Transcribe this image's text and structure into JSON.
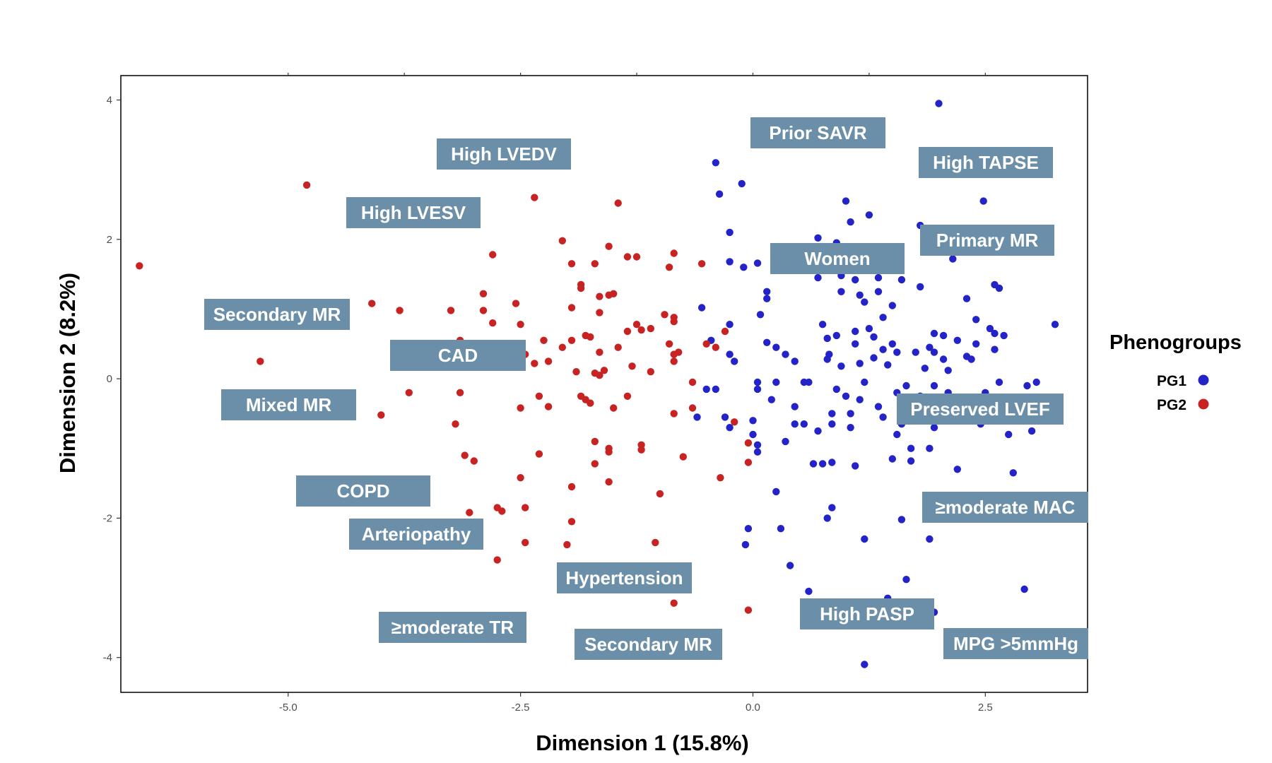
{
  "chart_data": {
    "type": "scatter",
    "xlabel": "Dimension 1 (15.8%)",
    "ylabel": "Dimension 2 (8.2%)",
    "xlim": [
      -6.8,
      3.6
    ],
    "ylim": [
      -4.5,
      4.35
    ],
    "xticks": [
      -5.0,
      -2.5,
      0.0,
      2.5
    ],
    "xtick_labels": [
      "-5.0",
      "-2.5",
      "0.0",
      "2.5"
    ],
    "yticks": [
      -4,
      -2,
      0,
      2,
      4
    ],
    "ytick_labels": [
      "-4",
      "-2",
      "0",
      "2",
      "4"
    ],
    "grid": false,
    "legend": {
      "title": "Phenogroups",
      "position": "right",
      "entries": [
        "PG1",
        "PG2"
      ]
    },
    "series": [
      {
        "name": "PG1",
        "color": "#2323c8",
        "points": [
          [
            2.0,
            3.95
          ],
          [
            -0.4,
            3.1
          ],
          [
            -0.12,
            2.8
          ],
          [
            -0.36,
            2.65
          ],
          [
            1.0,
            2.55
          ],
          [
            2.48,
            2.55
          ],
          [
            1.25,
            2.35
          ],
          [
            1.05,
            2.25
          ],
          [
            1.8,
            2.2
          ],
          [
            -0.25,
            2.1
          ],
          [
            0.7,
            2.02
          ],
          [
            0.9,
            1.95
          ],
          [
            2.15,
            1.72
          ],
          [
            -0.25,
            1.68
          ],
          [
            -0.1,
            1.6
          ],
          [
            0.05,
            1.66
          ],
          [
            0.7,
            1.45
          ],
          [
            0.95,
            1.48
          ],
          [
            1.1,
            1.42
          ],
          [
            1.35,
            1.45
          ],
          [
            1.6,
            1.42
          ],
          [
            1.8,
            1.32
          ],
          [
            2.6,
            1.35
          ],
          [
            2.65,
            1.3
          ],
          [
            0.15,
            1.25
          ],
          [
            0.15,
            1.15
          ],
          [
            0.95,
            1.25
          ],
          [
            1.15,
            1.2
          ],
          [
            1.35,
            1.25
          ],
          [
            2.3,
            1.15
          ],
          [
            1.2,
            1.1
          ],
          [
            1.5,
            1.05
          ],
          [
            -0.55,
            1.02
          ],
          [
            0.08,
            0.92
          ],
          [
            0.75,
            0.78
          ],
          [
            1.4,
            0.88
          ],
          [
            2.4,
            0.85
          ],
          [
            -0.25,
            0.78
          ],
          [
            0.9,
            0.62
          ],
          [
            1.1,
            0.68
          ],
          [
            1.25,
            0.72
          ],
          [
            1.3,
            0.6
          ],
          [
            1.95,
            0.65
          ],
          [
            2.05,
            0.62
          ],
          [
            2.55,
            0.72
          ],
          [
            2.6,
            0.65
          ],
          [
            2.7,
            0.62
          ],
          [
            3.25,
            0.78
          ],
          [
            -0.45,
            0.55
          ],
          [
            0.15,
            0.52
          ],
          [
            0.8,
            0.58
          ],
          [
            1.1,
            0.5
          ],
          [
            1.5,
            0.5
          ],
          [
            1.9,
            0.45
          ],
          [
            2.2,
            0.55
          ],
          [
            2.4,
            0.5
          ],
          [
            -0.25,
            0.35
          ],
          [
            0.25,
            0.45
          ],
          [
            0.35,
            0.35
          ],
          [
            0.82,
            0.35
          ],
          [
            1.4,
            0.42
          ],
          [
            1.55,
            0.38
          ],
          [
            1.75,
            0.38
          ],
          [
            1.95,
            0.38
          ],
          [
            2.05,
            0.28
          ],
          [
            2.3,
            0.32
          ],
          [
            2.35,
            0.28
          ],
          [
            2.6,
            0.42
          ],
          [
            -0.2,
            0.25
          ],
          [
            0.45,
            0.25
          ],
          [
            0.8,
            0.28
          ],
          [
            0.95,
            0.18
          ],
          [
            1.3,
            0.3
          ],
          [
            1.45,
            0.2
          ],
          [
            1.15,
            0.22
          ],
          [
            1.85,
            0.15
          ],
          [
            2.1,
            0.12
          ],
          [
            -0.4,
            -0.15
          ],
          [
            -0.5,
            -0.15
          ],
          [
            0.05,
            -0.05
          ],
          [
            0.25,
            -0.05
          ],
          [
            0.55,
            -0.05
          ],
          [
            0.6,
            -0.05
          ],
          [
            1.2,
            -0.05
          ],
          [
            1.65,
            -0.1
          ],
          [
            1.95,
            -0.1
          ],
          [
            2.65,
            -0.05
          ],
          [
            2.95,
            -0.1
          ],
          [
            3.05,
            -0.05
          ],
          [
            0.05,
            -0.15
          ],
          [
            0.2,
            -0.3
          ],
          [
            0.9,
            -0.15
          ],
          [
            1.0,
            -0.25
          ],
          [
            1.15,
            -0.3
          ],
          [
            1.55,
            -0.2
          ],
          [
            1.8,
            -0.25
          ],
          [
            2.1,
            -0.2
          ],
          [
            2.5,
            -0.2
          ],
          [
            0.45,
            -0.4
          ],
          [
            0.85,
            -0.5
          ],
          [
            1.05,
            -0.5
          ],
          [
            1.35,
            -0.4
          ],
          [
            2.55,
            -0.45
          ],
          [
            -0.6,
            -0.55
          ],
          [
            -0.3,
            -0.55
          ],
          [
            0.0,
            -0.6
          ],
          [
            0.45,
            -0.65
          ],
          [
            0.55,
            -0.65
          ],
          [
            0.85,
            -0.65
          ],
          [
            1.05,
            -0.7
          ],
          [
            1.4,
            -0.55
          ],
          [
            1.6,
            -0.65
          ],
          [
            1.95,
            -0.7
          ],
          [
            2.45,
            -0.65
          ],
          [
            -0.25,
            -0.7
          ],
          [
            0.0,
            -0.8
          ],
          [
            0.05,
            -0.95
          ],
          [
            0.7,
            -0.75
          ],
          [
            1.55,
            -0.8
          ],
          [
            2.75,
            -0.8
          ],
          [
            3.0,
            -0.75
          ],
          [
            0.35,
            -0.9
          ],
          [
            1.7,
            -1.0
          ],
          [
            1.9,
            -1.0
          ],
          [
            0.05,
            -1.05
          ],
          [
            0.65,
            -1.22
          ],
          [
            0.75,
            -1.22
          ],
          [
            0.85,
            -1.2
          ],
          [
            1.1,
            -1.25
          ],
          [
            1.5,
            -1.15
          ],
          [
            1.7,
            -1.18
          ],
          [
            2.2,
            -1.3
          ],
          [
            2.8,
            -1.35
          ],
          [
            0.25,
            -1.62
          ],
          [
            0.85,
            -1.85
          ],
          [
            0.8,
            -2.0
          ],
          [
            1.6,
            -2.02
          ],
          [
            1.9,
            -2.3
          ],
          [
            -0.05,
            -2.15
          ],
          [
            0.3,
            -2.15
          ],
          [
            1.2,
            -2.3
          ],
          [
            -0.08,
            -2.38
          ],
          [
            0.4,
            -2.68
          ],
          [
            1.65,
            -2.88
          ],
          [
            0.6,
            -3.05
          ],
          [
            2.92,
            -3.02
          ],
          [
            1.45,
            -3.15
          ],
          [
            1.95,
            -3.35
          ],
          [
            1.2,
            -4.1
          ]
        ]
      },
      {
        "name": "PG2",
        "color": "#c82323",
        "points": [
          [
            -6.6,
            1.62
          ],
          [
            -4.8,
            2.78
          ],
          [
            -2.35,
            2.6
          ],
          [
            -1.45,
            2.52
          ],
          [
            -2.05,
            1.98
          ],
          [
            -1.55,
            1.9
          ],
          [
            -2.8,
            1.78
          ],
          [
            -1.35,
            1.75
          ],
          [
            -1.25,
            1.75
          ],
          [
            -0.85,
            1.8
          ],
          [
            -1.95,
            1.65
          ],
          [
            -1.7,
            1.65
          ],
          [
            -0.9,
            1.6
          ],
          [
            -0.55,
            1.65
          ],
          [
            -1.85,
            1.35
          ],
          [
            -1.85,
            1.3
          ],
          [
            -2.9,
            1.22
          ],
          [
            -1.65,
            1.18
          ],
          [
            -1.5,
            1.22
          ],
          [
            -2.55,
            1.08
          ],
          [
            -1.55,
            1.2
          ],
          [
            -4.1,
            1.08
          ],
          [
            -3.8,
            0.98
          ],
          [
            -3.25,
            0.98
          ],
          [
            -2.9,
            0.98
          ],
          [
            -1.95,
            1.02
          ],
          [
            -1.65,
            0.95
          ],
          [
            -0.95,
            0.92
          ],
          [
            -0.85,
            0.88
          ],
          [
            -2.8,
            0.8
          ],
          [
            -2.5,
            0.78
          ],
          [
            -1.25,
            0.78
          ],
          [
            -1.1,
            0.72
          ],
          [
            -0.85,
            0.82
          ],
          [
            -0.3,
            0.68
          ],
          [
            -2.25,
            0.55
          ],
          [
            -1.8,
            0.62
          ],
          [
            -1.75,
            0.6
          ],
          [
            -1.95,
            0.55
          ],
          [
            -1.65,
            0.38
          ],
          [
            -1.35,
            0.68
          ],
          [
            -1.2,
            0.7
          ],
          [
            -3.15,
            0.55
          ],
          [
            -2.45,
            0.35
          ],
          [
            -2.05,
            0.45
          ],
          [
            -1.45,
            0.45
          ],
          [
            -0.9,
            0.5
          ],
          [
            -0.85,
            0.35
          ],
          [
            -0.5,
            0.5
          ],
          [
            -2.9,
            0.3
          ],
          [
            -2.35,
            0.22
          ],
          [
            -2.2,
            0.25
          ],
          [
            -2.6,
            0.2
          ],
          [
            -1.9,
            0.1
          ],
          [
            -1.6,
            0.12
          ],
          [
            -1.3,
            0.18
          ],
          [
            -5.3,
            0.25
          ],
          [
            -1.7,
            0.08
          ],
          [
            -1.65,
            0.05
          ],
          [
            -1.1,
            0.1
          ],
          [
            -0.85,
            0.25
          ],
          [
            -0.8,
            0.38
          ],
          [
            -0.4,
            0.45
          ],
          [
            -0.65,
            -0.05
          ],
          [
            -3.7,
            -0.2
          ],
          [
            -3.15,
            -0.2
          ],
          [
            -2.3,
            -0.25
          ],
          [
            -1.85,
            -0.25
          ],
          [
            -1.8,
            -0.3
          ],
          [
            -1.75,
            -0.35
          ],
          [
            -1.35,
            -0.25
          ],
          [
            -2.5,
            -0.42
          ],
          [
            -2.2,
            -0.4
          ],
          [
            -1.5,
            -0.42
          ],
          [
            -0.65,
            -0.42
          ],
          [
            -4.0,
            -0.52
          ],
          [
            -0.85,
            -0.5
          ],
          [
            -3.2,
            -0.65
          ],
          [
            -0.2,
            -0.62
          ],
          [
            -1.7,
            -0.9
          ],
          [
            -1.2,
            -0.95
          ],
          [
            -3.1,
            -1.1
          ],
          [
            -3.0,
            -1.18
          ],
          [
            -2.3,
            -1.08
          ],
          [
            -1.55,
            -1.05
          ],
          [
            -1.55,
            -1.0
          ],
          [
            -1.2,
            -1.02
          ],
          [
            -0.75,
            -1.12
          ],
          [
            -1.7,
            -1.22
          ],
          [
            -0.05,
            -0.92
          ],
          [
            -0.05,
            -1.2
          ],
          [
            -2.5,
            -1.42
          ],
          [
            -1.55,
            -1.48
          ],
          [
            -0.35,
            -1.42
          ],
          [
            -1.95,
            -1.55
          ],
          [
            -1.0,
            -1.65
          ],
          [
            -3.05,
            -1.92
          ],
          [
            -2.75,
            -1.85
          ],
          [
            -2.7,
            -1.9
          ],
          [
            -2.45,
            -1.85
          ],
          [
            -1.95,
            -2.05
          ],
          [
            -3.0,
            -2.35
          ],
          [
            -2.45,
            -2.35
          ],
          [
            -2.0,
            -2.38
          ],
          [
            -1.05,
            -2.35
          ],
          [
            -2.75,
            -2.6
          ],
          [
            -0.85,
            -3.22
          ],
          [
            -0.05,
            -3.32
          ]
        ]
      }
    ],
    "annotations": [
      "Prior SAVR",
      "High LVEDV",
      "High TAPSE",
      "High LVESV",
      "Primary MR",
      "Women",
      "Secondary MR",
      "CAD",
      "Mixed MR",
      "Preserved LVEF",
      "COPD",
      "≥moderate MAC",
      "Arteriopathy",
      "Hypertension",
      "High PASP",
      "≥moderate TR",
      "Secondary MR",
      "MPG >5mmHg"
    ],
    "annotation_color": "#6b8fa8"
  }
}
